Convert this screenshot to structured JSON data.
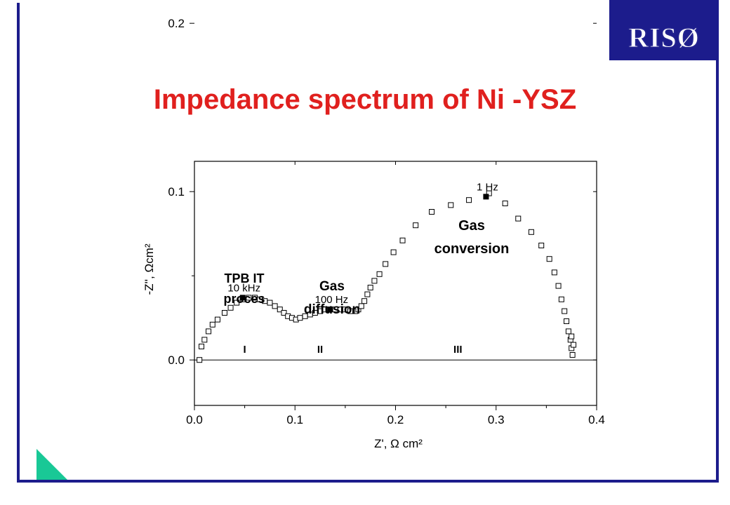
{
  "slide": {
    "title": "Impedance spectrum of Ni -YSZ",
    "logo": "RISØ",
    "frame_color": "#1c1c8c",
    "title_color": "#e0201e",
    "corner_triangle_color": "#19c896",
    "corner_icon": "triangle-decoration-icon"
  },
  "chart_data": {
    "type": "scatter",
    "title": "",
    "xlabel": "Z', Ω cm²",
    "ylabel": "-Z'', Ωcm²",
    "xlim": [
      0.0,
      0.4
    ],
    "ylim": [
      -0.027,
      0.118
    ],
    "x_ticks": [
      "0.0",
      "0.1",
      "0.2",
      "0.3",
      "0.4"
    ],
    "y_ticks": [
      "0.0",
      "0.1",
      "0.2"
    ],
    "grid": false,
    "series": [
      {
        "marker": "open-square",
        "x": [
          0.005,
          0.007,
          0.01,
          0.014,
          0.018,
          0.023,
          0.03,
          0.036,
          0.042,
          0.048,
          0.054,
          0.06,
          0.065,
          0.07,
          0.075,
          0.08,
          0.085,
          0.089,
          0.093,
          0.097,
          0.101,
          0.105,
          0.11,
          0.115,
          0.12,
          0.125,
          0.13,
          0.135,
          0.14,
          0.145,
          0.15,
          0.155,
          0.16,
          0.163,
          0.166,
          0.169,
          0.172,
          0.175,
          0.179,
          0.184,
          0.19,
          0.198,
          0.207,
          0.22,
          0.236,
          0.255,
          0.273,
          0.293,
          0.309,
          0.322,
          0.335,
          0.345,
          0.353,
          0.358,
          0.362,
          0.365,
          0.368,
          0.37,
          0.372,
          0.374,
          0.375,
          0.376,
          0.375,
          0.377
        ],
        "y": [
          0.0,
          0.008,
          0.012,
          0.017,
          0.021,
          0.024,
          0.028,
          0.031,
          0.034,
          0.036,
          0.037,
          0.037,
          0.036,
          0.035,
          0.034,
          0.032,
          0.03,
          0.028,
          0.026,
          0.025,
          0.024,
          0.025,
          0.026,
          0.027,
          0.028,
          0.029,
          0.03,
          0.03,
          0.03,
          0.03,
          0.03,
          0.029,
          0.029,
          0.03,
          0.032,
          0.035,
          0.039,
          0.043,
          0.047,
          0.051,
          0.057,
          0.064,
          0.071,
          0.08,
          0.088,
          0.092,
          0.095,
          0.099,
          0.093,
          0.084,
          0.076,
          0.068,
          0.06,
          0.052,
          0.044,
          0.036,
          0.029,
          0.023,
          0.017,
          0.012,
          0.007,
          0.003,
          0.014,
          0.009
        ]
      },
      {
        "marker": "filled-square",
        "x": [
          0.048,
          0.135,
          0.29
        ],
        "y": [
          0.037,
          0.03,
          0.097
        ]
      }
    ],
    "point_labels": [
      "10 kHz",
      "100 Hz",
      "1 Hz"
    ],
    "regions": [
      "I",
      "II",
      "III"
    ],
    "region_x": [
      0.05,
      0.125,
      0.262
    ],
    "process_labels": [
      "TPB IT\nproces",
      "Gas\ndiffusion",
      "Gas\nconversion"
    ]
  }
}
